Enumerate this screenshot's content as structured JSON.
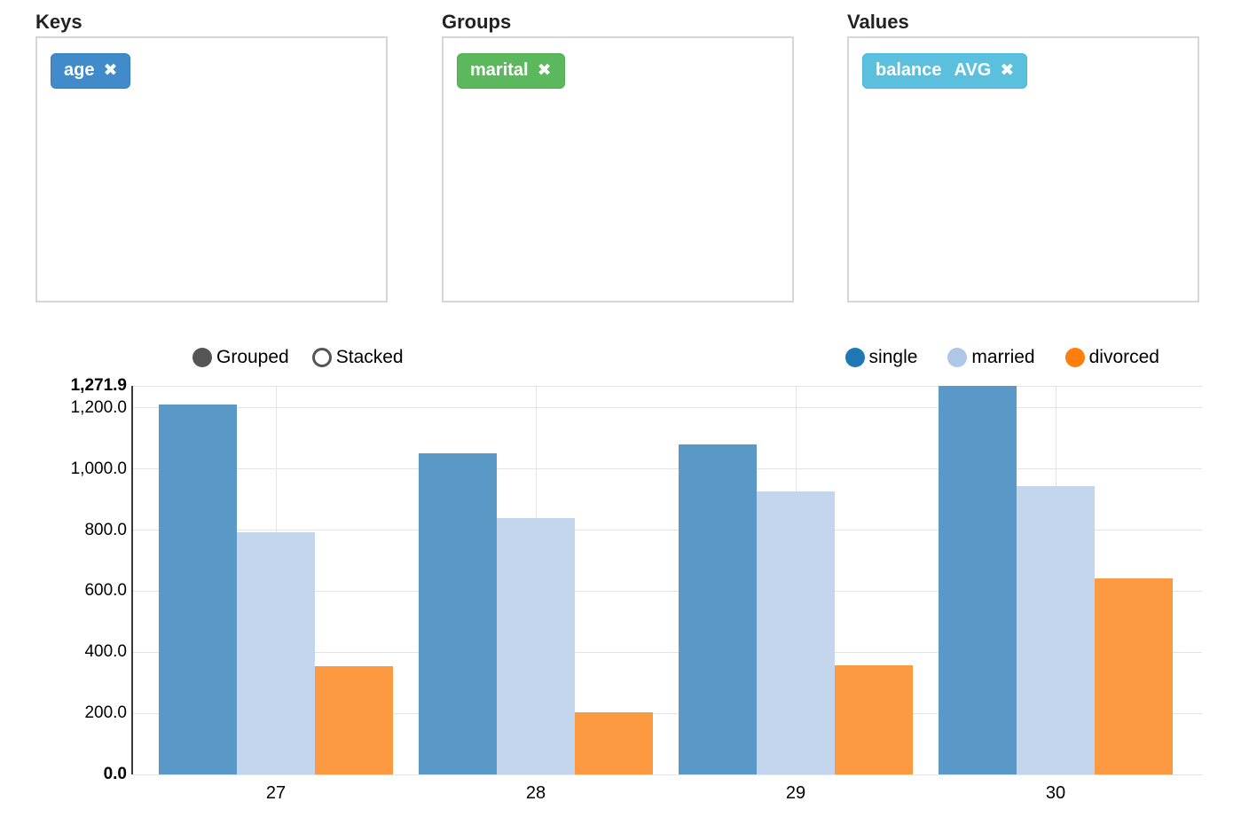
{
  "panels": {
    "keys": {
      "title": "Keys",
      "tag": {
        "label": "age",
        "agg": "",
        "remove_icon": "✖",
        "bg": "#428bca",
        "border": "#357ebd"
      }
    },
    "groups": {
      "title": "Groups",
      "tag": {
        "label": "marital",
        "agg": "",
        "remove_icon": "✖",
        "bg": "#5cb85c",
        "border": "#4cae4c"
      }
    },
    "values": {
      "title": "Values",
      "tag": {
        "label": "balance",
        "agg": "AVG",
        "remove_icon": "✖",
        "bg": "#5bc0de",
        "border": "#46b8da"
      }
    }
  },
  "chart": {
    "controls": [
      {
        "label": "Grouped",
        "active": true
      },
      {
        "label": "Stacked",
        "active": false
      }
    ],
    "control_color": "#555555"
  },
  "chart_data": {
    "type": "bar",
    "mode": "grouped",
    "title": "",
    "xlabel": "",
    "ylabel": "",
    "categories": [
      "27",
      "28",
      "29",
      "30"
    ],
    "series": [
      {
        "name": "single",
        "legend_color": "#1f77b4",
        "bar_color": "#5a99c7",
        "values": [
          1211,
          1050,
          1081,
          1271.9
        ]
      },
      {
        "name": "married",
        "legend_color": "#aec7e8",
        "bar_color": "#c4d6ed",
        "values": [
          793,
          838,
          925,
          943
        ]
      },
      {
        "name": "divorced",
        "legend_color": "#ff7f0e",
        "bar_color": "#fd9a41",
        "values": [
          355,
          204,
          357,
          641
        ]
      }
    ],
    "ylim": [
      0,
      1271.9
    ],
    "yticks": [
      {
        "value": 0,
        "label": "0.0",
        "bold": true
      },
      {
        "value": 200,
        "label": "200.0",
        "bold": false
      },
      {
        "value": 400,
        "label": "400.0",
        "bold": false
      },
      {
        "value": 600,
        "label": "600.0",
        "bold": false
      },
      {
        "value": 800,
        "label": "800.0",
        "bold": false
      },
      {
        "value": 1000,
        "label": "1,000.0",
        "bold": false
      },
      {
        "value": 1200,
        "label": "1,200.0",
        "bold": false
      },
      {
        "value": 1271.9,
        "label": "1,271.9",
        "bold": true
      }
    ],
    "grid": true,
    "legend_position": "top-right"
  }
}
